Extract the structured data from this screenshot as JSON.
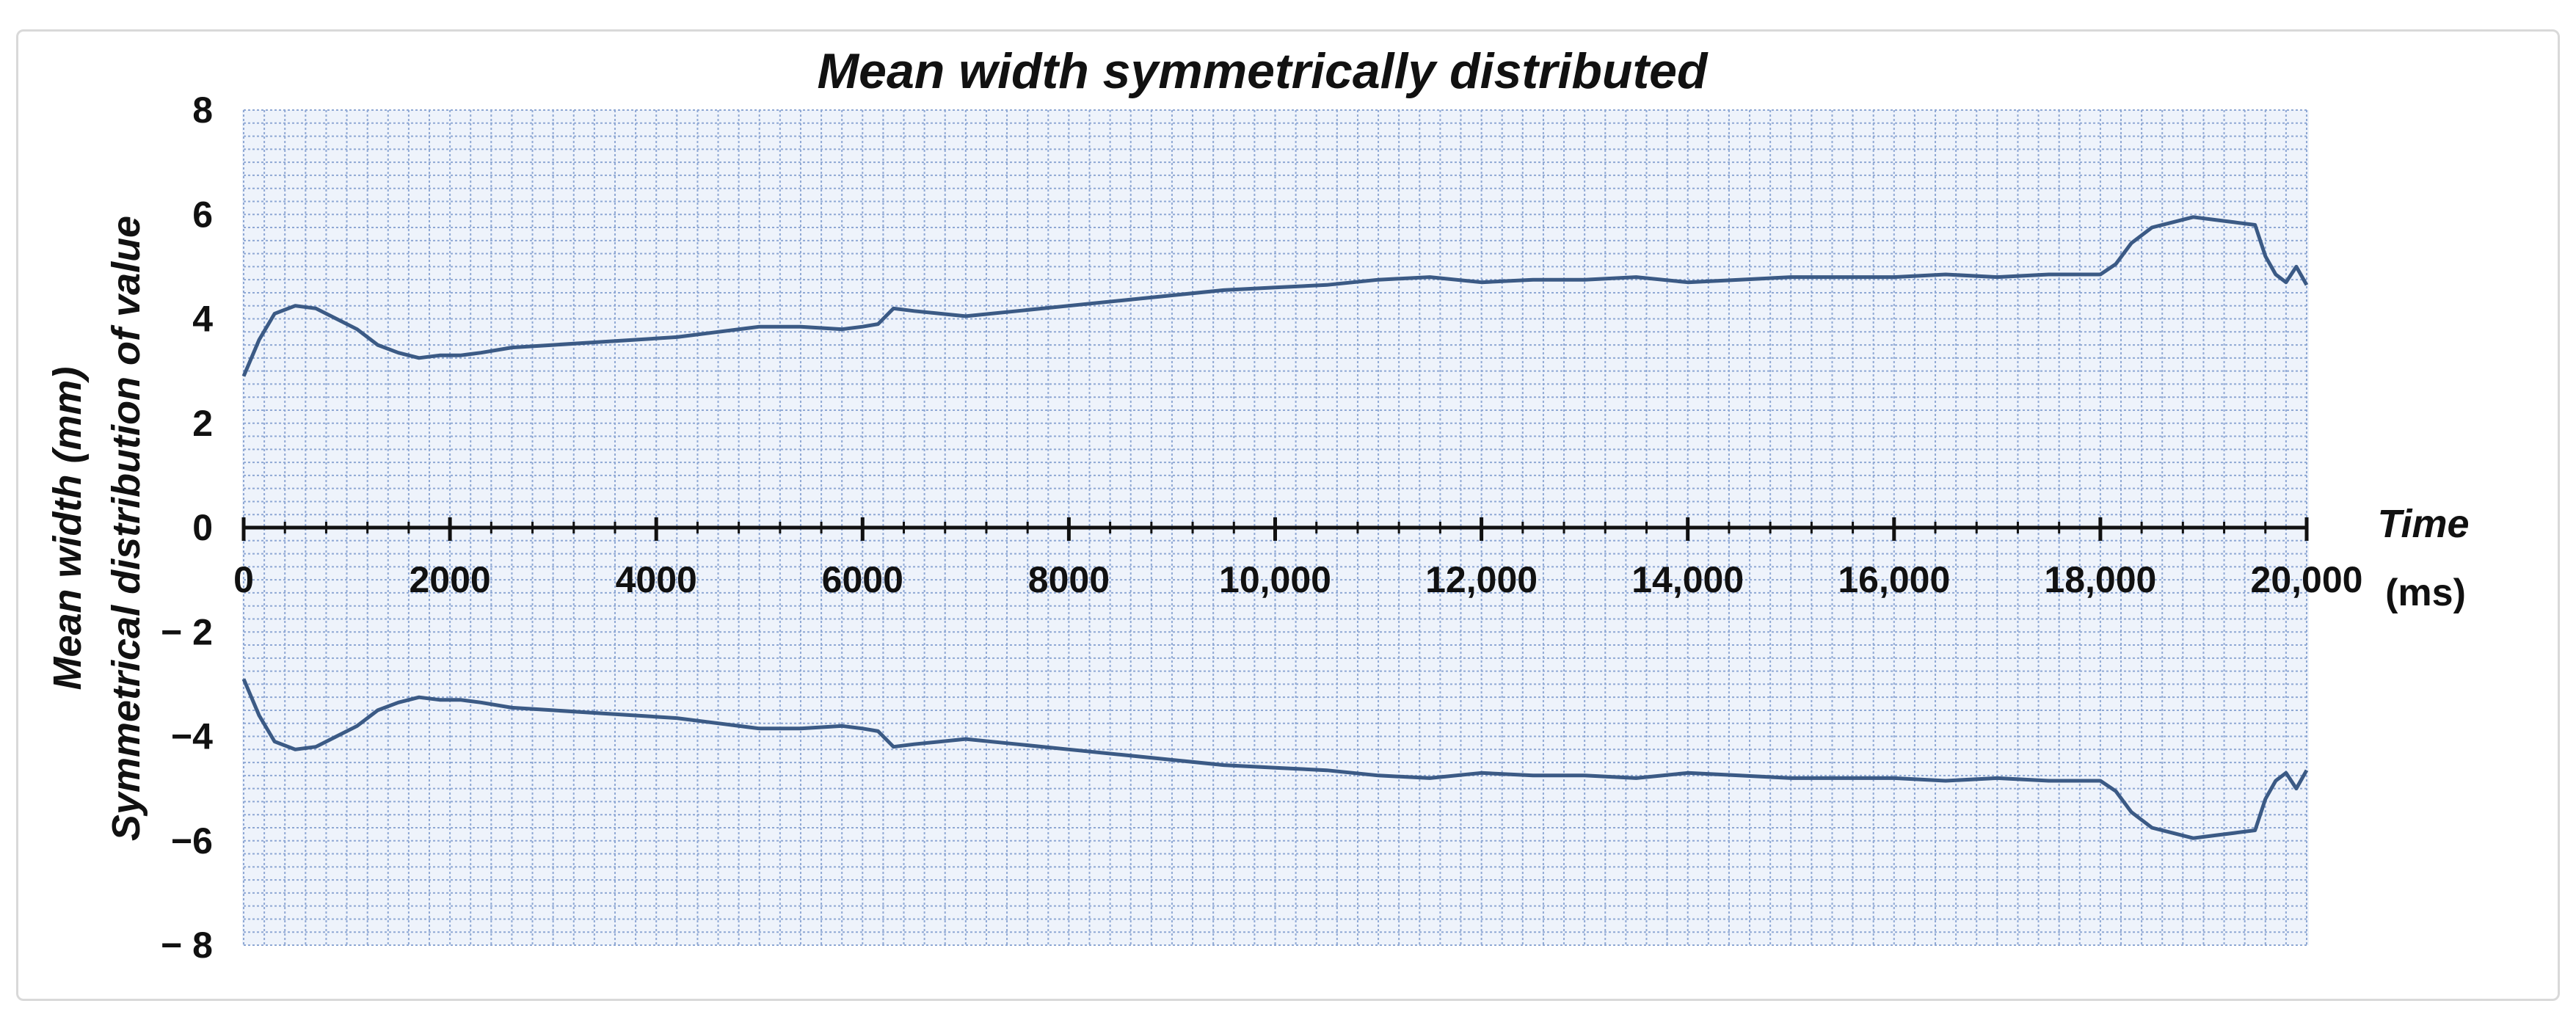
{
  "chart_data": {
    "type": "line",
    "title": "Mean width symmetrically distributed",
    "ylabel_line1": "Mean width  (mm)",
    "ylabel_line2": "Symmetrical distribution  of value",
    "xlabel_title": "Time",
    "xlabel_unit": "(ms)",
    "xlim": [
      0,
      20000
    ],
    "ylim": [
      -8,
      8
    ],
    "x_ticks": [
      {
        "value": 0,
        "label": "0"
      },
      {
        "value": 2000,
        "label": "2000"
      },
      {
        "value": 4000,
        "label": "4000"
      },
      {
        "value": 6000,
        "label": "6000"
      },
      {
        "value": 8000,
        "label": "8000"
      },
      {
        "value": 10000,
        "label": "10,000"
      },
      {
        "value": 12000,
        "label": "12,000"
      },
      {
        "value": 14000,
        "label": "14,000"
      },
      {
        "value": 16000,
        "label": "16,000"
      },
      {
        "value": 18000,
        "label": "18,000"
      },
      {
        "value": 20000,
        "label": "20,000"
      }
    ],
    "y_ticks": [
      {
        "value": 8,
        "label": "8"
      },
      {
        "value": 6,
        "label": "6"
      },
      {
        "value": 4,
        "label": "4"
      },
      {
        "value": 2,
        "label": "2"
      },
      {
        "value": 0,
        "label": "0"
      },
      {
        "value": -2,
        "label": "− 2"
      },
      {
        "value": -4,
        "label": "−4"
      },
      {
        "value": -6,
        "label": "−6"
      },
      {
        "value": -8,
        "label": "− 8"
      }
    ],
    "grid": true,
    "line_color": "#3b5a85",
    "grid_color": "#8fa8d4",
    "series": [
      {
        "x": [
          0,
          150,
          300,
          500,
          700,
          900,
          1100,
          1300,
          1500,
          1700,
          1900,
          2100,
          2300,
          2600,
          3000,
          3400,
          3800,
          4200,
          4600,
          5000,
          5400,
          5800,
          6000,
          6150,
          6300,
          6500,
          7000,
          7500,
          8000,
          8500,
          9000,
          9500,
          10000,
          10500,
          11000,
          11500,
          12000,
          12500,
          13000,
          13500,
          14000,
          14500,
          15000,
          15500,
          16000,
          16500,
          17000,
          17500,
          18000,
          18150,
          18300,
          18500,
          18700,
          18900,
          19100,
          19300,
          19500,
          19600,
          19700,
          19800,
          19900,
          20000
        ],
        "values": [
          2.9,
          3.6,
          4.1,
          4.25,
          4.2,
          4.0,
          3.8,
          3.5,
          3.35,
          3.25,
          3.3,
          3.3,
          3.35,
          3.45,
          3.5,
          3.55,
          3.6,
          3.65,
          3.75,
          3.85,
          3.85,
          3.8,
          3.85,
          3.9,
          4.2,
          4.15,
          4.05,
          4.15,
          4.25,
          4.35,
          4.45,
          4.55,
          4.6,
          4.65,
          4.75,
          4.8,
          4.7,
          4.75,
          4.75,
          4.8,
          4.7,
          4.75,
          4.8,
          4.8,
          4.8,
          4.85,
          4.8,
          4.85,
          4.85,
          5.05,
          5.45,
          5.75,
          5.85,
          5.95,
          5.9,
          5.85,
          5.8,
          5.2,
          4.85,
          4.7,
          5.0,
          4.65
        ]
      },
      {
        "x": [
          0,
          150,
          300,
          500,
          700,
          900,
          1100,
          1300,
          1500,
          1700,
          1900,
          2100,
          2300,
          2600,
          3000,
          3400,
          3800,
          4200,
          4600,
          5000,
          5400,
          5800,
          6000,
          6150,
          6300,
          6500,
          7000,
          7500,
          8000,
          8500,
          9000,
          9500,
          10000,
          10500,
          11000,
          11500,
          12000,
          12500,
          13000,
          13500,
          14000,
          14500,
          15000,
          15500,
          16000,
          16500,
          17000,
          17500,
          18000,
          18150,
          18300,
          18500,
          18700,
          18900,
          19100,
          19300,
          19500,
          19600,
          19700,
          19800,
          19900,
          20000
        ],
        "values": [
          -2.9,
          -3.6,
          -4.1,
          -4.25,
          -4.2,
          -4.0,
          -3.8,
          -3.5,
          -3.35,
          -3.25,
          -3.3,
          -3.3,
          -3.35,
          -3.45,
          -3.5,
          -3.55,
          -3.6,
          -3.65,
          -3.75,
          -3.85,
          -3.85,
          -3.8,
          -3.85,
          -3.9,
          -4.2,
          -4.15,
          -4.05,
          -4.15,
          -4.25,
          -4.35,
          -4.45,
          -4.55,
          -4.6,
          -4.65,
          -4.75,
          -4.8,
          -4.7,
          -4.75,
          -4.75,
          -4.8,
          -4.7,
          -4.75,
          -4.8,
          -4.8,
          -4.8,
          -4.85,
          -4.8,
          -4.85,
          -4.85,
          -5.05,
          -5.45,
          -5.75,
          -5.85,
          -5.95,
          -5.9,
          -5.85,
          -5.8,
          -5.2,
          -4.85,
          -4.7,
          -5.0,
          -4.65
        ]
      }
    ]
  }
}
